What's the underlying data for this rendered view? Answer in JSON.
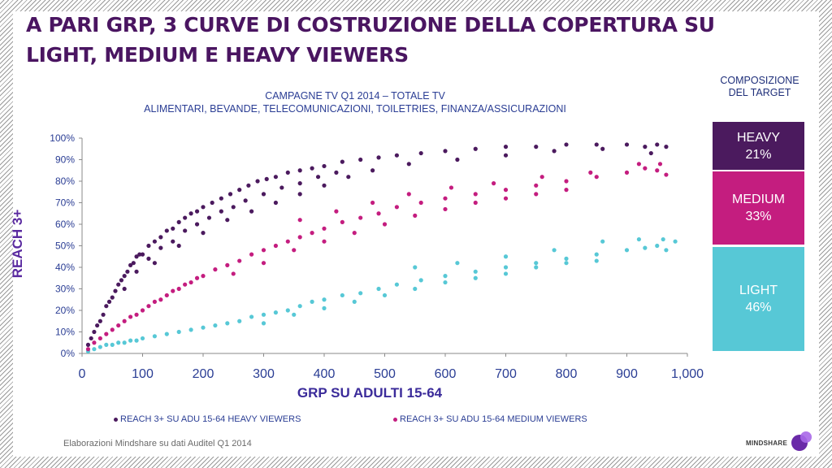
{
  "slide": {
    "title": "A PARI GRP, 3 CURVE DI COSTRUZIONE DELLA COPERTURA SU LIGHT, MEDIUM E HEAVY VIEWERS",
    "footer": "Elaborazioni Mindshare su dati Auditel Q1 2014",
    "logo_text": "MINDSHARE"
  },
  "composition": {
    "title_line1": "COMPOSIZIONE",
    "title_line2": "DEL TARGET",
    "segments": [
      {
        "label": "HEAVY",
        "value": "21%",
        "color": "#4b1a5e"
      },
      {
        "label": "MEDIUM",
        "value": "33%",
        "color": "#c41d7f"
      },
      {
        "label": "LIGHT",
        "value": "46%",
        "color": "#57c8d6"
      }
    ]
  },
  "chart_data": {
    "type": "scatter",
    "title": "CAMPAGNE TV Q1 2014 – TOTALE TV",
    "subtitle": "ALIMENTARI, BEVANDE, TELECOMUNICAZIONI, TOILETRIES, FINANZA/ASSICURAZIONI",
    "xlabel": "GRP SU ADULTI 15-64",
    "ylabel": "REACH 3+",
    "xlim": [
      0,
      1000
    ],
    "ylim": [
      0,
      100
    ],
    "x_ticks": [
      "0",
      "100",
      "200",
      "300",
      "400",
      "500",
      "600",
      "700",
      "800",
      "900",
      "1,000"
    ],
    "y_ticks": [
      "0%",
      "10%",
      "20%",
      "30%",
      "40%",
      "50%",
      "60%",
      "70%",
      "80%",
      "90%",
      "100%"
    ],
    "grid": false,
    "legend_position": "bottom",
    "legend": [
      {
        "label": "REACH 3+ SU ADU 15-64 HEAVY VIEWERS",
        "color": "#4b1a5e"
      },
      {
        "label": "REACH 3+ SU ADU 15-64 MEDIUM VIEWERS",
        "color": "#c41d7f"
      }
    ],
    "series": [
      {
        "name": "REACH 3+ SU ADU 15-64 HEAVY VIEWERS",
        "color": "#4b1a5e",
        "points": [
          [
            10,
            4
          ],
          [
            15,
            7
          ],
          [
            20,
            10
          ],
          [
            25,
            13
          ],
          [
            30,
            15
          ],
          [
            35,
            18
          ],
          [
            40,
            22
          ],
          [
            45,
            24
          ],
          [
            50,
            26
          ],
          [
            55,
            29
          ],
          [
            60,
            32
          ],
          [
            65,
            34
          ],
          [
            70,
            36
          ],
          [
            75,
            38
          ],
          [
            80,
            41
          ],
          [
            85,
            42
          ],
          [
            90,
            45
          ],
          [
            95,
            46
          ],
          [
            100,
            46
          ],
          [
            110,
            50
          ],
          [
            120,
            52
          ],
          [
            130,
            54
          ],
          [
            140,
            57
          ],
          [
            150,
            58
          ],
          [
            160,
            61
          ],
          [
            170,
            63
          ],
          [
            180,
            65
          ],
          [
            190,
            66
          ],
          [
            200,
            68
          ],
          [
            215,
            70
          ],
          [
            230,
            72
          ],
          [
            245,
            74
          ],
          [
            260,
            76
          ],
          [
            275,
            78
          ],
          [
            290,
            80
          ],
          [
            305,
            81
          ],
          [
            320,
            82
          ],
          [
            340,
            84
          ],
          [
            360,
            85
          ],
          [
            380,
            86
          ],
          [
            400,
            87
          ],
          [
            430,
            89
          ],
          [
            460,
            90
          ],
          [
            490,
            91
          ],
          [
            520,
            92
          ],
          [
            560,
            93
          ],
          [
            600,
            94
          ],
          [
            650,
            95
          ],
          [
            700,
            96
          ],
          [
            750,
            96
          ],
          [
            800,
            97
          ],
          [
            850,
            97
          ],
          [
            900,
            97
          ],
          [
            930,
            96
          ],
          [
            950,
            97
          ],
          [
            965,
            96
          ],
          [
            70,
            30
          ],
          [
            90,
            38
          ],
          [
            110,
            44
          ],
          [
            130,
            49
          ],
          [
            150,
            52
          ],
          [
            170,
            57
          ],
          [
            190,
            60
          ],
          [
            210,
            63
          ],
          [
            230,
            66
          ],
          [
            250,
            68
          ],
          [
            270,
            71
          ],
          [
            300,
            74
          ],
          [
            330,
            77
          ],
          [
            360,
            79
          ],
          [
            390,
            82
          ],
          [
            420,
            84
          ],
          [
            120,
            42
          ],
          [
            160,
            50
          ],
          [
            200,
            56
          ],
          [
            240,
            62
          ],
          [
            280,
            66
          ],
          [
            320,
            70
          ],
          [
            360,
            74
          ],
          [
            400,
            78
          ],
          [
            440,
            82
          ],
          [
            480,
            85
          ],
          [
            540,
            88
          ],
          [
            620,
            90
          ],
          [
            700,
            92
          ],
          [
            780,
            94
          ],
          [
            860,
            95
          ],
          [
            940,
            93
          ]
        ]
      },
      {
        "name": "REACH 3+ SU ADU 15-64 MEDIUM VIEWERS",
        "color": "#c41d7f",
        "points": [
          [
            10,
            2
          ],
          [
            20,
            5
          ],
          [
            30,
            7
          ],
          [
            40,
            9
          ],
          [
            50,
            11
          ],
          [
            60,
            13
          ],
          [
            70,
            15
          ],
          [
            80,
            17
          ],
          [
            90,
            18
          ],
          [
            100,
            20
          ],
          [
            110,
            22
          ],
          [
            120,
            24
          ],
          [
            130,
            25
          ],
          [
            140,
            27
          ],
          [
            150,
            29
          ],
          [
            160,
            30
          ],
          [
            170,
            32
          ],
          [
            180,
            33
          ],
          [
            190,
            35
          ],
          [
            200,
            36
          ],
          [
            220,
            39
          ],
          [
            240,
            41
          ],
          [
            260,
            43
          ],
          [
            280,
            46
          ],
          [
            300,
            48
          ],
          [
            320,
            50
          ],
          [
            340,
            52
          ],
          [
            360,
            54
          ],
          [
            380,
            56
          ],
          [
            400,
            58
          ],
          [
            430,
            61
          ],
          [
            460,
            63
          ],
          [
            490,
            65
          ],
          [
            520,
            68
          ],
          [
            560,
            70
          ],
          [
            600,
            72
          ],
          [
            650,
            74
          ],
          [
            700,
            76
          ],
          [
            750,
            78
          ],
          [
            800,
            80
          ],
          [
            850,
            82
          ],
          [
            900,
            84
          ],
          [
            930,
            86
          ],
          [
            950,
            85
          ],
          [
            965,
            83
          ],
          [
            250,
            37
          ],
          [
            300,
            42
          ],
          [
            350,
            48
          ],
          [
            400,
            52
          ],
          [
            450,
            56
          ],
          [
            500,
            60
          ],
          [
            550,
            64
          ],
          [
            600,
            67
          ],
          [
            650,
            70
          ],
          [
            700,
            72
          ],
          [
            750,
            74
          ],
          [
            800,
            76
          ],
          [
            360,
            62
          ],
          [
            420,
            66
          ],
          [
            480,
            70
          ],
          [
            540,
            74
          ],
          [
            610,
            77
          ],
          [
            680,
            79
          ],
          [
            760,
            82
          ],
          [
            840,
            84
          ],
          [
            920,
            88
          ],
          [
            955,
            88
          ]
        ]
      },
      {
        "name": "",
        "color": "#57c8d6",
        "points": [
          [
            10,
            1
          ],
          [
            20,
            2
          ],
          [
            30,
            3
          ],
          [
            40,
            4
          ],
          [
            50,
            4
          ],
          [
            60,
            5
          ],
          [
            70,
            5
          ],
          [
            80,
            6
          ],
          [
            90,
            6
          ],
          [
            100,
            7
          ],
          [
            120,
            8
          ],
          [
            140,
            9
          ],
          [
            160,
            10
          ],
          [
            180,
            11
          ],
          [
            200,
            12
          ],
          [
            220,
            13
          ],
          [
            240,
            14
          ],
          [
            260,
            15
          ],
          [
            280,
            17
          ],
          [
            300,
            18
          ],
          [
            320,
            19
          ],
          [
            340,
            20
          ],
          [
            360,
            22
          ],
          [
            380,
            24
          ],
          [
            400,
            25
          ],
          [
            430,
            27
          ],
          [
            460,
            28
          ],
          [
            490,
            30
          ],
          [
            520,
            32
          ],
          [
            560,
            34
          ],
          [
            600,
            36
          ],
          [
            650,
            38
          ],
          [
            700,
            40
          ],
          [
            750,
            42
          ],
          [
            800,
            44
          ],
          [
            850,
            46
          ],
          [
            900,
            48
          ],
          [
            930,
            49
          ],
          [
            950,
            50
          ],
          [
            965,
            48
          ],
          [
            300,
            14
          ],
          [
            350,
            18
          ],
          [
            400,
            21
          ],
          [
            450,
            24
          ],
          [
            500,
            27
          ],
          [
            550,
            30
          ],
          [
            600,
            33
          ],
          [
            650,
            35
          ],
          [
            700,
            37
          ],
          [
            750,
            40
          ],
          [
            800,
            42
          ],
          [
            850,
            43
          ],
          [
            550,
            40
          ],
          [
            620,
            42
          ],
          [
            700,
            45
          ],
          [
            780,
            48
          ],
          [
            860,
            52
          ],
          [
            920,
            53
          ],
          [
            960,
            53
          ],
          [
            980,
            52
          ]
        ]
      }
    ]
  }
}
